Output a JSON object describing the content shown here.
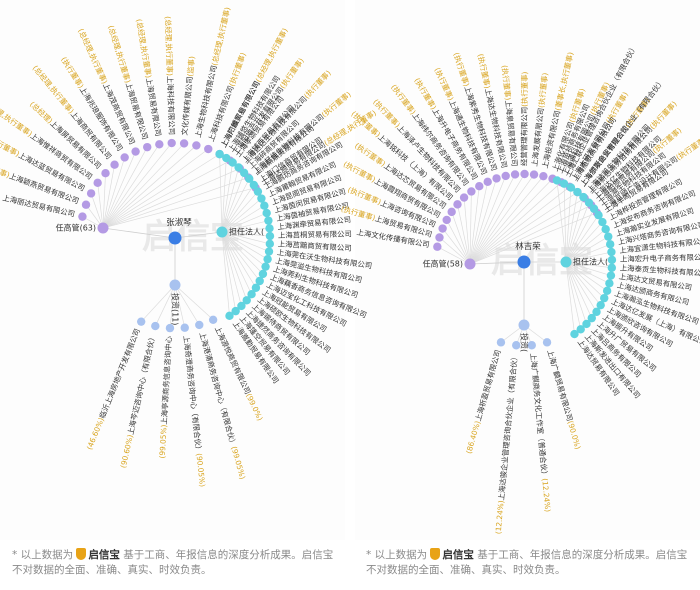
{
  "colors": {
    "purple": "#b49ae4",
    "cyan": "#5fd3df",
    "blue": "#3a7ee5",
    "lightblue": "#a8c2ef",
    "gold": "#d9a520",
    "text": "#333333",
    "line": "#dcdcdc"
  },
  "watermark": "启信宝",
  "footer": {
    "prefix": "* 以上数据为",
    "brand": "启信宝",
    "suffix": "基于工商、年报信息的深度分析成果。启信宝不对数据的全面、准确、真实、时效负责。"
  },
  "panels": [
    {
      "center_name": "张淑琴",
      "left_hub": "任高管(63)",
      "right_hub": "担任法人(",
      "bottom_hub": "投资(11)",
      "left_items": [
        {
          "name": "上海丽达贸易有限公司",
          "role": ""
        },
        {
          "name": "上海颖燕贸易有限公司",
          "role": "(总经理,执行董事)"
        },
        {
          "name": "上海达蓝贸易有限公司",
          "role": "(总经理,执行董事)"
        },
        {
          "name": "上海惟祥商贸有限公司",
          "role": "(总经理,执行董事)"
        },
        {
          "name": "上海屏贸易有限公司",
          "role": "(总经理)"
        },
        {
          "name": "上海商贸有限公司",
          "role": "(总经理,执行董事)"
        },
        {
          "name": "上海兆琅服饰有限公司",
          "role": "(执行董事)"
        },
        {
          "name": "上海茂商贸有限公司",
          "role": "(总经理,执行董事)"
        },
        {
          "name": "上海贸易有限公司",
          "role": "(总经理,执行董事)"
        },
        {
          "name": "上海贸易有限公司",
          "role": "(总经理,执行董事)"
        },
        {
          "name": "上海科技有限公司",
          "role": "(总经理,执行董事)"
        },
        {
          "name": "文化传媒有限公司",
          "role": "(监事)"
        },
        {
          "name": "上海生物科技有限公司",
          "role": "(总经理,执行董事)"
        },
        {
          "name": "上海科技有限公司",
          "role": "(执行董事)"
        },
        {
          "name": "上海阳维实业有限公司",
          "role": "(总经理,执行董事)"
        },
        {
          "name": "上海阳地产开发有限公司",
          "role": "(执行董事)"
        },
        {
          "name": "上海达达生物科技有限公司",
          "role": "(执行董事)"
        },
        {
          "name": "上海赶佳生物科技有限公司",
          "role": "(执行董事)"
        },
        {
          "name": "上海达颁贸易有限公司",
          "role": "(总经理,执行董事)"
        }
      ],
      "right_items": [
        {
          "name": "上海广麟贸易有限公司",
          "role": ""
        },
        {
          "name": "上海铺悠生物科技有限公司",
          "role": ""
        },
        {
          "name": "上海孝颂贸易有限公司",
          "role": ""
        },
        {
          "name": "上海铺西贸易有限公司",
          "role": ""
        },
        {
          "name": "上海碎商贸有限公司",
          "role": ""
        },
        {
          "name": "上海新鼎贸易有限公司",
          "role": ""
        },
        {
          "name": "上海门信商贸有限公司",
          "role": ""
        },
        {
          "name": "上海鹏坊商务咨询有限公司",
          "role": ""
        },
        {
          "name": "上海莆翰贸易有限公司",
          "role": ""
        },
        {
          "name": "上海昆阁贸易有限公司",
          "role": ""
        },
        {
          "name": "上海茵闵贸易有限公司",
          "role": ""
        },
        {
          "name": "上海茵袖贸易有限公司",
          "role": ""
        },
        {
          "name": "上海渊牵贸易有限公司",
          "role": ""
        },
        {
          "name": "上海莒桐贸易有限公司",
          "role": ""
        },
        {
          "name": "上海莒黯商贸有限公司",
          "role": ""
        },
        {
          "name": "上海莞在沃生物科技有限公司",
          "role": ""
        },
        {
          "name": "上海莞溢生物科技有限公司",
          "role": ""
        },
        {
          "name": "上海莞利生物科技有限公司",
          "role": ""
        },
        {
          "name": "上海藕香商务信息咨询有限公司",
          "role": ""
        },
        {
          "name": "上海迈宝化工科技有限公司",
          "role": ""
        },
        {
          "name": "上海冠能贸易有限公司",
          "role": ""
        },
        {
          "name": "上海硕欧生物科技有限公司",
          "role": ""
        },
        {
          "name": "上海锡侍商贸有限公司",
          "role": ""
        },
        {
          "name": "上海捷然商务咨询有限公司",
          "role": ""
        },
        {
          "name": "上海篷空贸易有限公司",
          "role": ""
        },
        {
          "name": "上海嵩勤贸易有限公司",
          "role": ""
        }
      ],
      "bottom_items": [
        {
          "name": "上海源悦商贸有限公司",
          "role": "(99.0%)"
        },
        {
          "name": "上海港浦商务咨询中心（有限合伙）",
          "role": "(99.05%)"
        },
        {
          "name": "上海奇澄商务咨询中心（有限合伙）",
          "role": "(90.05%)"
        },
        {
          "name": "上海亭源商务信息咨询中心",
          "role": "(99.05%)"
        },
        {
          "name": "上海芩迈咨询中心（有限合伙）",
          "role": "(90.60%)"
        },
        {
          "name": "临沂上海房地产开发有限公司",
          "role": "(46.60%)"
        }
      ]
    },
    {
      "center_name": "林吉荣",
      "left_hub": "任高管(58)",
      "right_hub": "担任法人(",
      "bottom_hub": "投资(",
      "left_items": [
        {
          "name": "上海文化传播有限公司",
          "role": ""
        },
        {
          "name": "上海贸易有限公司",
          "role": "(执行董事)"
        },
        {
          "name": "上海咨询有限公司",
          "role": "(执行董事)"
        },
        {
          "name": "上海霞翔商贸有限公司",
          "role": "(执行董事)"
        },
        {
          "name": "上海达芯贸易有限公司",
          "role": "(执行董事)"
        },
        {
          "name": "上海铭科技（上海）有限公司",
          "role": "(执行董事)"
        },
        {
          "name": "上海泽卢生物科技有限公司",
          "role": "(执行董事)"
        },
        {
          "name": "上海纬尔商务咨询有限公司",
          "role": "(执行董事)"
        },
        {
          "name": "上海升电子商务有限公司",
          "role": "(执行董事)"
        },
        {
          "name": "上海通生物科技有限公司",
          "role": "(执行董事)"
        },
        {
          "name": "上海紫秀生物科技有限公司",
          "role": "(执行董事)"
        },
        {
          "name": "上海达生物科技有限公司",
          "role": "(执行董事)"
        },
        {
          "name": "上海泉贸易有限公司",
          "role": "(执行董事)"
        },
        {
          "name": "经营管理有限公司",
          "role": "(执行董事)"
        },
        {
          "name": "上海发展有限公司",
          "role": "(执行董事)"
        },
        {
          "name": "上海投资有限公司",
          "role": "(董事长,执行董事)"
        },
        {
          "name": "上海化有限公司",
          "role": "(执行董事)"
        },
        {
          "name": "上海通科技有限公司",
          "role": "(执行董事)"
        },
        {
          "name": "上海木研发有限公司",
          "role": "(执行董事)"
        },
        {
          "name": "上海颁发商贸有限公司",
          "role": "(执行董事)"
        },
        {
          "name": "上海新思商务咨询有限公司",
          "role": "(执行董事)"
        },
        {
          "name": "上海舶颁贸易有限公司",
          "role": "(执行董事)"
        },
        {
          "name": "上海亘顺广告设计有限公司",
          "role": "(执行董事)"
        }
      ],
      "right_items": [
        {
          "name": "上海苗祯商务有限公司",
          "role": ""
        },
        {
          "name": "上海汇联企业管理咨询合伙企业（有限合伙）",
          "role": ""
        },
        {
          "name": "上海瓶歌商贸有限公司",
          "role": ""
        },
        {
          "name": "上海尔斯企业管理合伙企业（有限合伙）",
          "role": ""
        },
        {
          "name": "上海达凯生物科技有限公司",
          "role": ""
        },
        {
          "name": "上海达亿生物科技有限公司",
          "role": ""
        },
        {
          "name": "上海溯生物科技有限公司",
          "role": ""
        },
        {
          "name": "上海丰鸣贸易有限公司",
          "role": ""
        },
        {
          "name": "上海桦投资管理有限公司",
          "role": ""
        },
        {
          "name": "上海安布商务咨询有限公司",
          "role": ""
        },
        {
          "name": "上海瀚实业发展有限公司",
          "role": ""
        },
        {
          "name": "上海兴塔商务咨询有限公司",
          "role": ""
        },
        {
          "name": "上海宜潇生物科技有限公司",
          "role": ""
        },
        {
          "name": "上海宏升电子商务有限公司",
          "role": ""
        },
        {
          "name": "上海泰贡生物科技有限公司",
          "role": ""
        },
        {
          "name": "上海达文贸易有限公司",
          "role": ""
        },
        {
          "name": "上海达颁商务有限公司",
          "role": ""
        },
        {
          "name": "上海瀚泓生物科技有限公司",
          "role": ""
        },
        {
          "name": "上海达亿发展（上海）有限公司",
          "role": ""
        },
        {
          "name": "上海颁欣咨询有限公司",
          "role": ""
        },
        {
          "name": "上海振升有限公司",
          "role": ""
        },
        {
          "name": "上海升广贸易有限公司",
          "role": ""
        },
        {
          "name": "上海吕商务有限公司",
          "role": ""
        },
        {
          "name": "上海斯发进出口有限公司",
          "role": ""
        },
        {
          "name": "上海达贸易有限公司",
          "role": ""
        }
      ],
      "bottom_items": [
        {
          "name": "上海广麟贸易有限公司",
          "role": "(90.0%)"
        },
        {
          "name": "上海广麒商务文化工作室（普通合伙）",
          "role": "(12.24%)"
        },
        {
          "name": "上海达骏企业管理咨询合伙企业（有限合伙）",
          "role": "(12.24%)"
        },
        {
          "name": "上海祈盈贸易有限公司",
          "role": "(86.40%)"
        }
      ]
    }
  ]
}
